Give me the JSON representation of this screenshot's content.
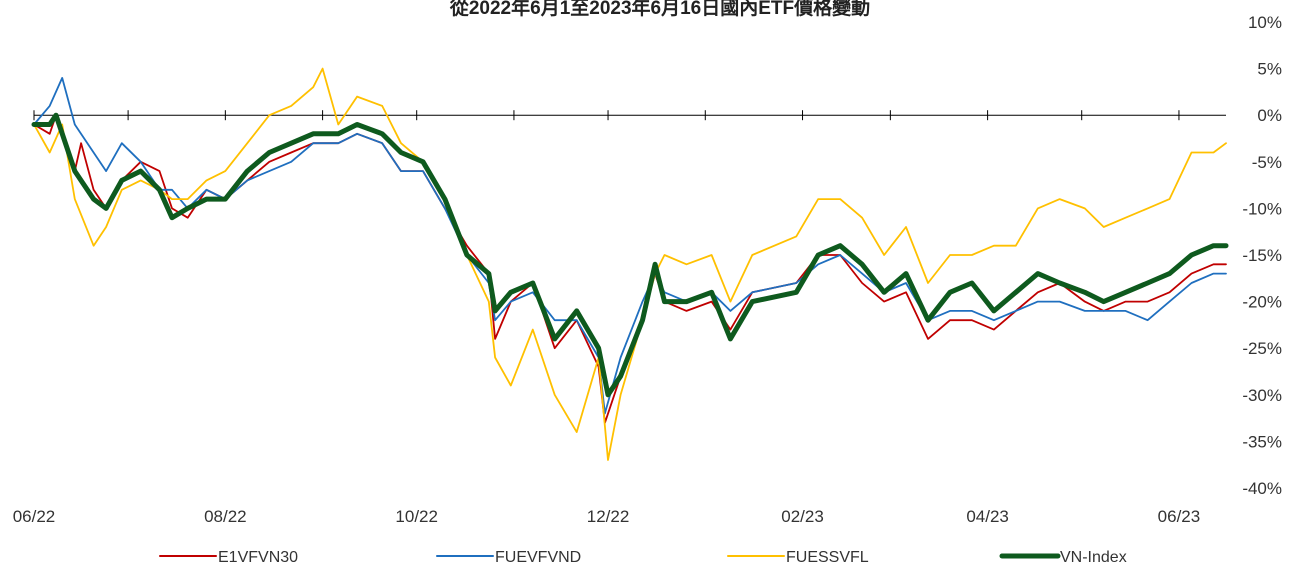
{
  "chart_data": {
    "type": "line",
    "title": "從2022年6月1至2023年6月16日國內ETF價格變動",
    "xlabel": "",
    "ylabel": "",
    "x_tick_labels": [
      "06/22",
      "08/22",
      "10/22",
      "12/22",
      "02/23",
      "04/23",
      "06/23"
    ],
    "y_tick_labels": [
      "10%",
      "5%",
      "0%",
      "-5%",
      "-10%",
      "-15%",
      "-20%",
      "-25%",
      "-30%",
      "-35%",
      "-40%"
    ],
    "ylim": [
      -40,
      10
    ],
    "x_range": [
      "2022-06-01",
      "2023-06-16"
    ],
    "y_axis_position": "right",
    "grid": false,
    "legend_position": "bottom",
    "colors": {
      "E1VFVN30": "#c00000",
      "FUEVFVND": "#1f6fbf",
      "FUESSVFL": "#ffc000",
      "VN-Index": "#0e5a1e"
    },
    "series": [
      {
        "name": "E1VFVN30",
        "points": [
          [
            "2022-06-01",
            -1
          ],
          [
            "2022-06-06",
            -2
          ],
          [
            "2022-06-08",
            0
          ],
          [
            "2022-06-14",
            -6
          ],
          [
            "2022-06-16",
            -3
          ],
          [
            "2022-06-20",
            -8
          ],
          [
            "2022-06-24",
            -10
          ],
          [
            "2022-06-29",
            -7
          ],
          [
            "2022-07-05",
            -5
          ],
          [
            "2022-07-11",
            -6
          ],
          [
            "2022-07-15",
            -10
          ],
          [
            "2022-07-20",
            -11
          ],
          [
            "2022-07-26",
            -8
          ],
          [
            "2022-08-01",
            -9
          ],
          [
            "2022-08-08",
            -7
          ],
          [
            "2022-08-15",
            -5
          ],
          [
            "2022-08-22",
            -4
          ],
          [
            "2022-08-29",
            -3
          ],
          [
            "2022-09-06",
            -3
          ],
          [
            "2022-09-12",
            -2
          ],
          [
            "2022-09-20",
            -3
          ],
          [
            "2022-09-26",
            -6
          ],
          [
            "2022-10-03",
            -6
          ],
          [
            "2022-10-10",
            -10
          ],
          [
            "2022-10-17",
            -14
          ],
          [
            "2022-10-24",
            -17
          ],
          [
            "2022-10-26",
            -24
          ],
          [
            "2022-10-31",
            -20
          ],
          [
            "2022-11-07",
            -18
          ],
          [
            "2022-11-14",
            -25
          ],
          [
            "2022-11-21",
            -22
          ],
          [
            "2022-11-28",
            -27
          ],
          [
            "2022-11-30",
            -33
          ],
          [
            "2022-12-05",
            -28
          ],
          [
            "2022-12-12",
            -22
          ],
          [
            "2022-12-16",
            -17
          ],
          [
            "2022-12-19",
            -20
          ],
          [
            "2022-12-26",
            -21
          ],
          [
            "2023-01-03",
            -20
          ],
          [
            "2023-01-09",
            -23
          ],
          [
            "2023-01-16",
            -19
          ],
          [
            "2023-01-30",
            -18
          ],
          [
            "2023-02-06",
            -15
          ],
          [
            "2023-02-13",
            -15
          ],
          [
            "2023-02-20",
            -18
          ],
          [
            "2023-02-27",
            -20
          ],
          [
            "2023-03-06",
            -19
          ],
          [
            "2023-03-13",
            -24
          ],
          [
            "2023-03-20",
            -22
          ],
          [
            "2023-03-27",
            -22
          ],
          [
            "2023-04-03",
            -23
          ],
          [
            "2023-04-10",
            -21
          ],
          [
            "2023-04-17",
            -19
          ],
          [
            "2023-04-24",
            -18
          ],
          [
            "2023-05-02",
            -20
          ],
          [
            "2023-05-08",
            -21
          ],
          [
            "2023-05-15",
            -20
          ],
          [
            "2023-05-22",
            -20
          ],
          [
            "2023-05-29",
            -19
          ],
          [
            "2023-06-05",
            -17
          ],
          [
            "2023-06-12",
            -16
          ],
          [
            "2023-06-16",
            -16
          ]
        ]
      },
      {
        "name": "FUEVFVND",
        "points": [
          [
            "2022-06-01",
            -1
          ],
          [
            "2022-06-06",
            1
          ],
          [
            "2022-06-10",
            4
          ],
          [
            "2022-06-14",
            -1
          ],
          [
            "2022-06-20",
            -4
          ],
          [
            "2022-06-24",
            -6
          ],
          [
            "2022-06-29",
            -3
          ],
          [
            "2022-07-05",
            -5
          ],
          [
            "2022-07-11",
            -8
          ],
          [
            "2022-07-15",
            -8
          ],
          [
            "2022-07-20",
            -10
          ],
          [
            "2022-07-26",
            -8
          ],
          [
            "2022-08-01",
            -9
          ],
          [
            "2022-08-08",
            -7
          ],
          [
            "2022-08-15",
            -6
          ],
          [
            "2022-08-22",
            -5
          ],
          [
            "2022-08-29",
            -3
          ],
          [
            "2022-09-06",
            -3
          ],
          [
            "2022-09-12",
            -2
          ],
          [
            "2022-09-20",
            -3
          ],
          [
            "2022-09-26",
            -6
          ],
          [
            "2022-10-03",
            -6
          ],
          [
            "2022-10-10",
            -10
          ],
          [
            "2022-10-17",
            -15
          ],
          [
            "2022-10-24",
            -18
          ],
          [
            "2022-10-26",
            -22
          ],
          [
            "2022-10-31",
            -20
          ],
          [
            "2022-11-07",
            -19
          ],
          [
            "2022-11-14",
            -22
          ],
          [
            "2022-11-21",
            -22
          ],
          [
            "2022-11-28",
            -26
          ],
          [
            "2022-11-30",
            -32
          ],
          [
            "2022-12-05",
            -26
          ],
          [
            "2022-12-12",
            -20
          ],
          [
            "2022-12-16",
            -17
          ],
          [
            "2022-12-19",
            -19
          ],
          [
            "2022-12-26",
            -20
          ],
          [
            "2023-01-03",
            -19
          ],
          [
            "2023-01-09",
            -21
          ],
          [
            "2023-01-16",
            -19
          ],
          [
            "2023-01-30",
            -18
          ],
          [
            "2023-02-06",
            -16
          ],
          [
            "2023-02-13",
            -15
          ],
          [
            "2023-02-20",
            -17
          ],
          [
            "2023-02-27",
            -19
          ],
          [
            "2023-03-06",
            -18
          ],
          [
            "2023-03-13",
            -22
          ],
          [
            "2023-03-20",
            -21
          ],
          [
            "2023-03-27",
            -21
          ],
          [
            "2023-04-03",
            -22
          ],
          [
            "2023-04-10",
            -21
          ],
          [
            "2023-04-17",
            -20
          ],
          [
            "2023-04-24",
            -20
          ],
          [
            "2023-05-02",
            -21
          ],
          [
            "2023-05-08",
            -21
          ],
          [
            "2023-05-15",
            -21
          ],
          [
            "2023-05-22",
            -22
          ],
          [
            "2023-05-29",
            -20
          ],
          [
            "2023-06-05",
            -18
          ],
          [
            "2023-06-12",
            -17
          ],
          [
            "2023-06-16",
            -17
          ]
        ]
      },
      {
        "name": "FUESSVFL",
        "points": [
          [
            "2022-06-01",
            -1
          ],
          [
            "2022-06-06",
            -4
          ],
          [
            "2022-06-10",
            -1
          ],
          [
            "2022-06-14",
            -9
          ],
          [
            "2022-06-20",
            -14
          ],
          [
            "2022-06-24",
            -12
          ],
          [
            "2022-06-29",
            -8
          ],
          [
            "2022-07-05",
            -7
          ],
          [
            "2022-07-11",
            -8
          ],
          [
            "2022-07-15",
            -9
          ],
          [
            "2022-07-20",
            -9
          ],
          [
            "2022-07-26",
            -7
          ],
          [
            "2022-08-01",
            -6
          ],
          [
            "2022-08-08",
            -3
          ],
          [
            "2022-08-15",
            0
          ],
          [
            "2022-08-22",
            1
          ],
          [
            "2022-08-29",
            3
          ],
          [
            "2022-09-01",
            5
          ],
          [
            "2022-09-06",
            -1
          ],
          [
            "2022-09-12",
            2
          ],
          [
            "2022-09-20",
            1
          ],
          [
            "2022-09-26",
            -3
          ],
          [
            "2022-10-03",
            -5
          ],
          [
            "2022-10-10",
            -9
          ],
          [
            "2022-10-17",
            -15
          ],
          [
            "2022-10-24",
            -20
          ],
          [
            "2022-10-26",
            -26
          ],
          [
            "2022-10-31",
            -29
          ],
          [
            "2022-11-07",
            -23
          ],
          [
            "2022-11-14",
            -30
          ],
          [
            "2022-11-21",
            -34
          ],
          [
            "2022-11-28",
            -26
          ],
          [
            "2022-12-01",
            -37
          ],
          [
            "2022-12-05",
            -30
          ],
          [
            "2022-12-12",
            -22
          ],
          [
            "2022-12-16",
            -17
          ],
          [
            "2022-12-19",
            -15
          ],
          [
            "2022-12-26",
            -16
          ],
          [
            "2023-01-03",
            -15
          ],
          [
            "2023-01-09",
            -20
          ],
          [
            "2023-01-16",
            -15
          ],
          [
            "2023-01-30",
            -13
          ],
          [
            "2023-02-06",
            -9
          ],
          [
            "2023-02-13",
            -9
          ],
          [
            "2023-02-20",
            -11
          ],
          [
            "2023-02-27",
            -15
          ],
          [
            "2023-03-06",
            -12
          ],
          [
            "2023-03-13",
            -18
          ],
          [
            "2023-03-20",
            -15
          ],
          [
            "2023-03-27",
            -15
          ],
          [
            "2023-04-03",
            -14
          ],
          [
            "2023-04-10",
            -14
          ],
          [
            "2023-04-17",
            -10
          ],
          [
            "2023-04-24",
            -9
          ],
          [
            "2023-05-02",
            -10
          ],
          [
            "2023-05-08",
            -12
          ],
          [
            "2023-05-15",
            -11
          ],
          [
            "2023-05-22",
            -10
          ],
          [
            "2023-05-29",
            -9
          ],
          [
            "2023-06-05",
            -4
          ],
          [
            "2023-06-12",
            -4
          ],
          [
            "2023-06-16",
            -3
          ]
        ]
      },
      {
        "name": "VN-Index",
        "points": [
          [
            "2022-06-01",
            -1
          ],
          [
            "2022-06-06",
            -1
          ],
          [
            "2022-06-08",
            0
          ],
          [
            "2022-06-14",
            -6
          ],
          [
            "2022-06-20",
            -9
          ],
          [
            "2022-06-24",
            -10
          ],
          [
            "2022-06-29",
            -7
          ],
          [
            "2022-07-05",
            -6
          ],
          [
            "2022-07-11",
            -8
          ],
          [
            "2022-07-15",
            -11
          ],
          [
            "2022-07-20",
            -10
          ],
          [
            "2022-07-26",
            -9
          ],
          [
            "2022-08-01",
            -9
          ],
          [
            "2022-08-08",
            -6
          ],
          [
            "2022-08-15",
            -4
          ],
          [
            "2022-08-22",
            -3
          ],
          [
            "2022-08-29",
            -2
          ],
          [
            "2022-09-06",
            -2
          ],
          [
            "2022-09-12",
            -1
          ],
          [
            "2022-09-20",
            -2
          ],
          [
            "2022-09-26",
            -4
          ],
          [
            "2022-10-03",
            -5
          ],
          [
            "2022-10-10",
            -9
          ],
          [
            "2022-10-17",
            -15
          ],
          [
            "2022-10-24",
            -17
          ],
          [
            "2022-10-26",
            -21
          ],
          [
            "2022-10-31",
            -19
          ],
          [
            "2022-11-07",
            -18
          ],
          [
            "2022-11-14",
            -24
          ],
          [
            "2022-11-21",
            -21
          ],
          [
            "2022-11-28",
            -25
          ],
          [
            "2022-12-01",
            -30
          ],
          [
            "2022-12-05",
            -28
          ],
          [
            "2022-12-12",
            -22
          ],
          [
            "2022-12-16",
            -16
          ],
          [
            "2022-12-19",
            -20
          ],
          [
            "2022-12-26",
            -20
          ],
          [
            "2023-01-03",
            -19
          ],
          [
            "2023-01-09",
            -24
          ],
          [
            "2023-01-16",
            -20
          ],
          [
            "2023-01-30",
            -19
          ],
          [
            "2023-02-06",
            -15
          ],
          [
            "2023-02-13",
            -14
          ],
          [
            "2023-02-20",
            -16
          ],
          [
            "2023-02-27",
            -19
          ],
          [
            "2023-03-06",
            -17
          ],
          [
            "2023-03-13",
            -22
          ],
          [
            "2023-03-20",
            -19
          ],
          [
            "2023-03-27",
            -18
          ],
          [
            "2023-04-03",
            -21
          ],
          [
            "2023-04-10",
            -19
          ],
          [
            "2023-04-17",
            -17
          ],
          [
            "2023-04-24",
            -18
          ],
          [
            "2023-05-02",
            -19
          ],
          [
            "2023-05-08",
            -20
          ],
          [
            "2023-05-15",
            -19
          ],
          [
            "2023-05-22",
            -18
          ],
          [
            "2023-05-29",
            -17
          ],
          [
            "2023-06-05",
            -15
          ],
          [
            "2023-06-12",
            -14
          ],
          [
            "2023-06-16",
            -14
          ]
        ]
      }
    ]
  }
}
